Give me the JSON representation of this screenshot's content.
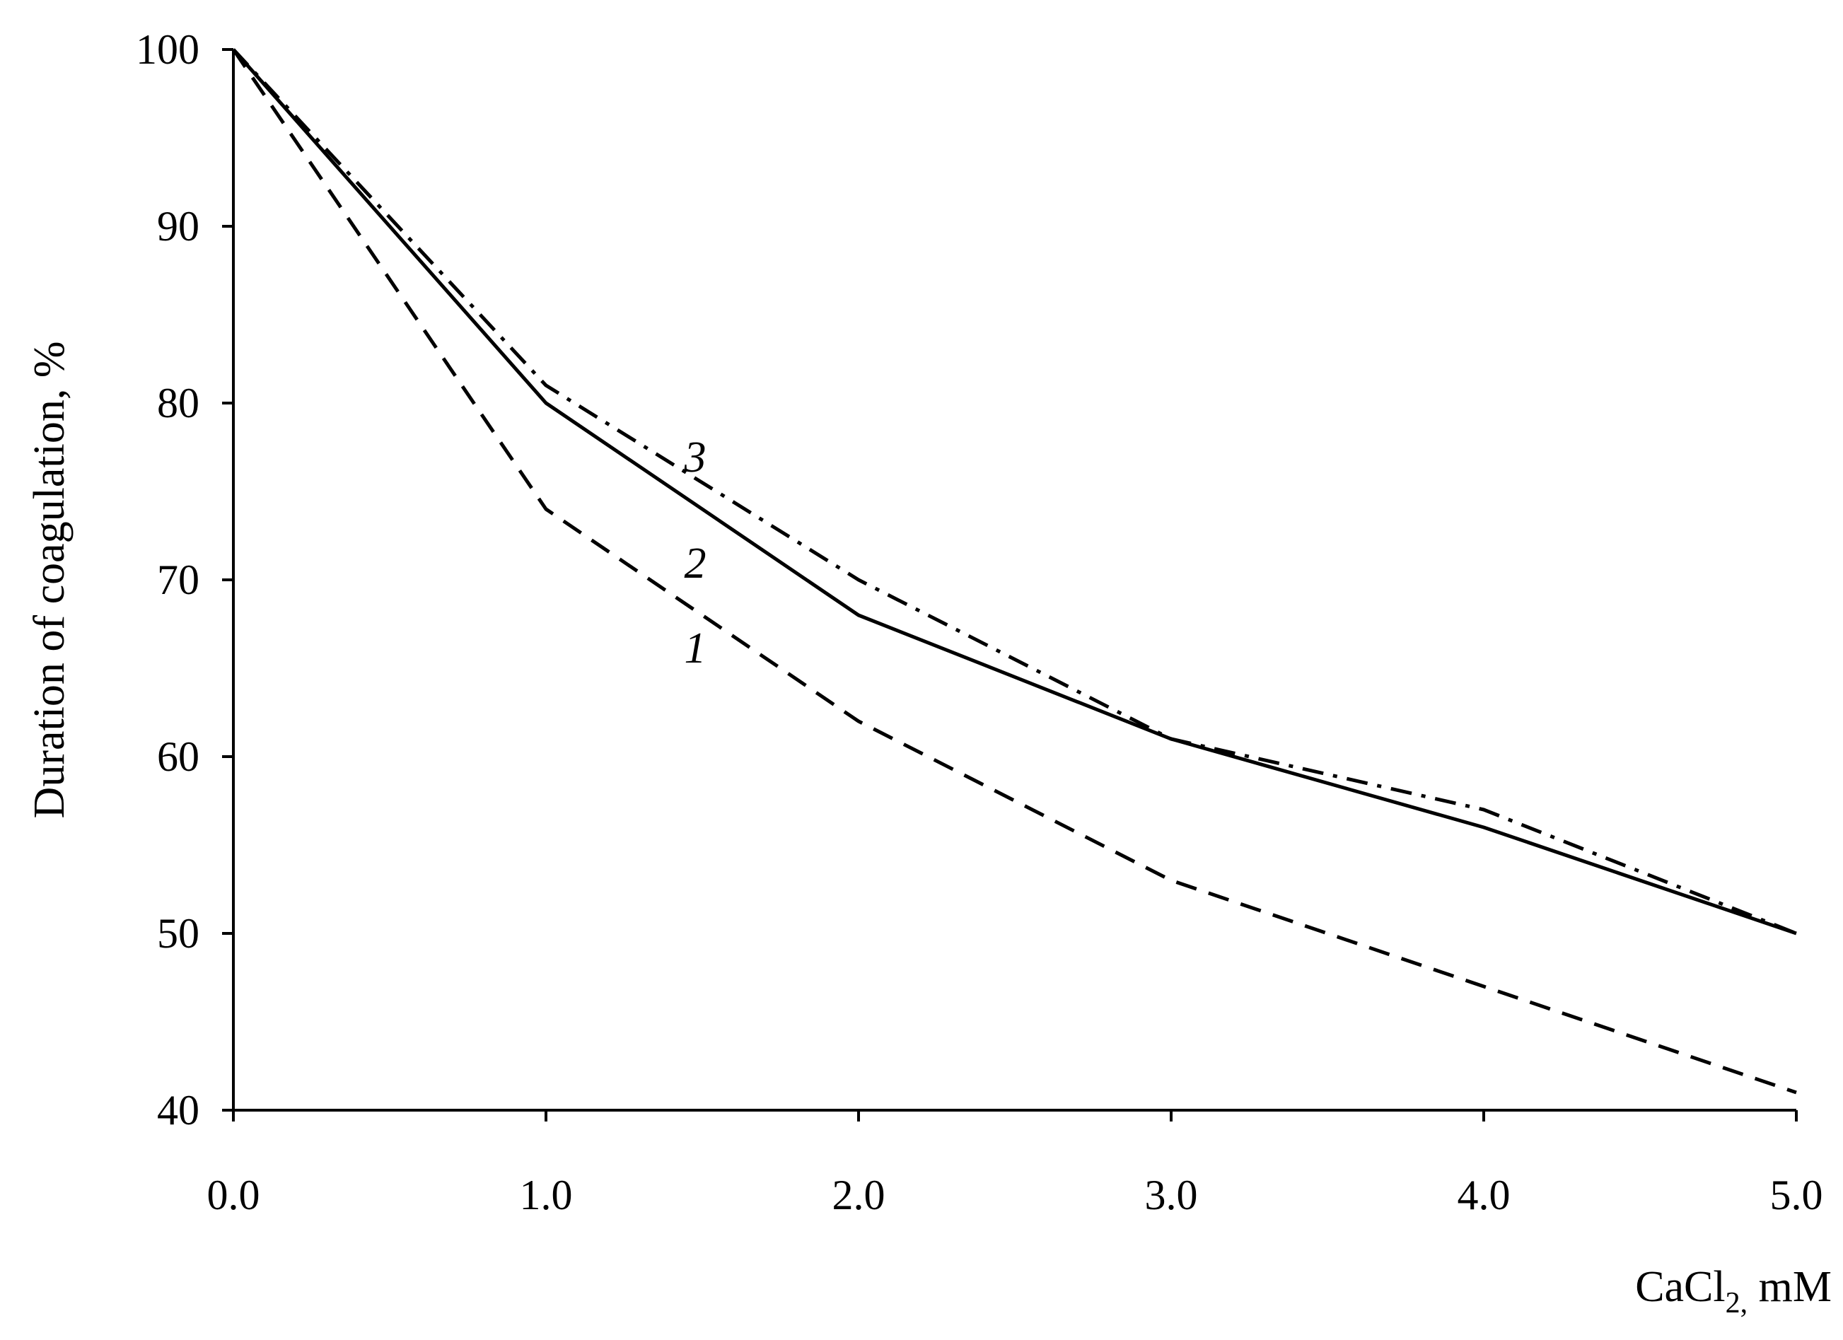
{
  "chart_data": {
    "type": "line",
    "title": "",
    "xlabel": "CaCl2, mM",
    "xlabel_main": "CaCl",
    "xlabel_sub": "2,",
    "xlabel_unit": " mM",
    "ylabel": "Duration of coagulation, %",
    "x": [
      0.0,
      1.0,
      2.0,
      3.0,
      4.0,
      5.0
    ],
    "x_tick_labels": [
      "0.0",
      "1.0",
      "2.0",
      "3.0",
      "4.0",
      "5.0"
    ],
    "y_ticks": [
      40,
      50,
      60,
      70,
      80,
      90,
      100
    ],
    "y_tick_labels": [
      "40",
      "50",
      "60",
      "70",
      "80",
      "90",
      "100"
    ],
    "xlim": [
      0,
      5
    ],
    "ylim": [
      40,
      100
    ],
    "grid": false,
    "legend": "none",
    "series": [
      {
        "name": "1",
        "label_x": 1.5,
        "label_y": 66.2,
        "line_style": "dashed",
        "values": [
          100,
          74,
          62,
          53,
          47,
          41
        ]
      },
      {
        "name": "2",
        "label_x": 1.5,
        "label_y": 71.0,
        "line_style": "solid",
        "values": [
          100,
          80,
          68,
          61,
          56,
          50
        ]
      },
      {
        "name": "3",
        "label_x": 1.5,
        "label_y": 77.0,
        "line_style": "dash-dot",
        "values": [
          100,
          81,
          70,
          61,
          57,
          50
        ]
      }
    ],
    "colors": {
      "line": "#000000",
      "background": "#ffffff"
    }
  }
}
